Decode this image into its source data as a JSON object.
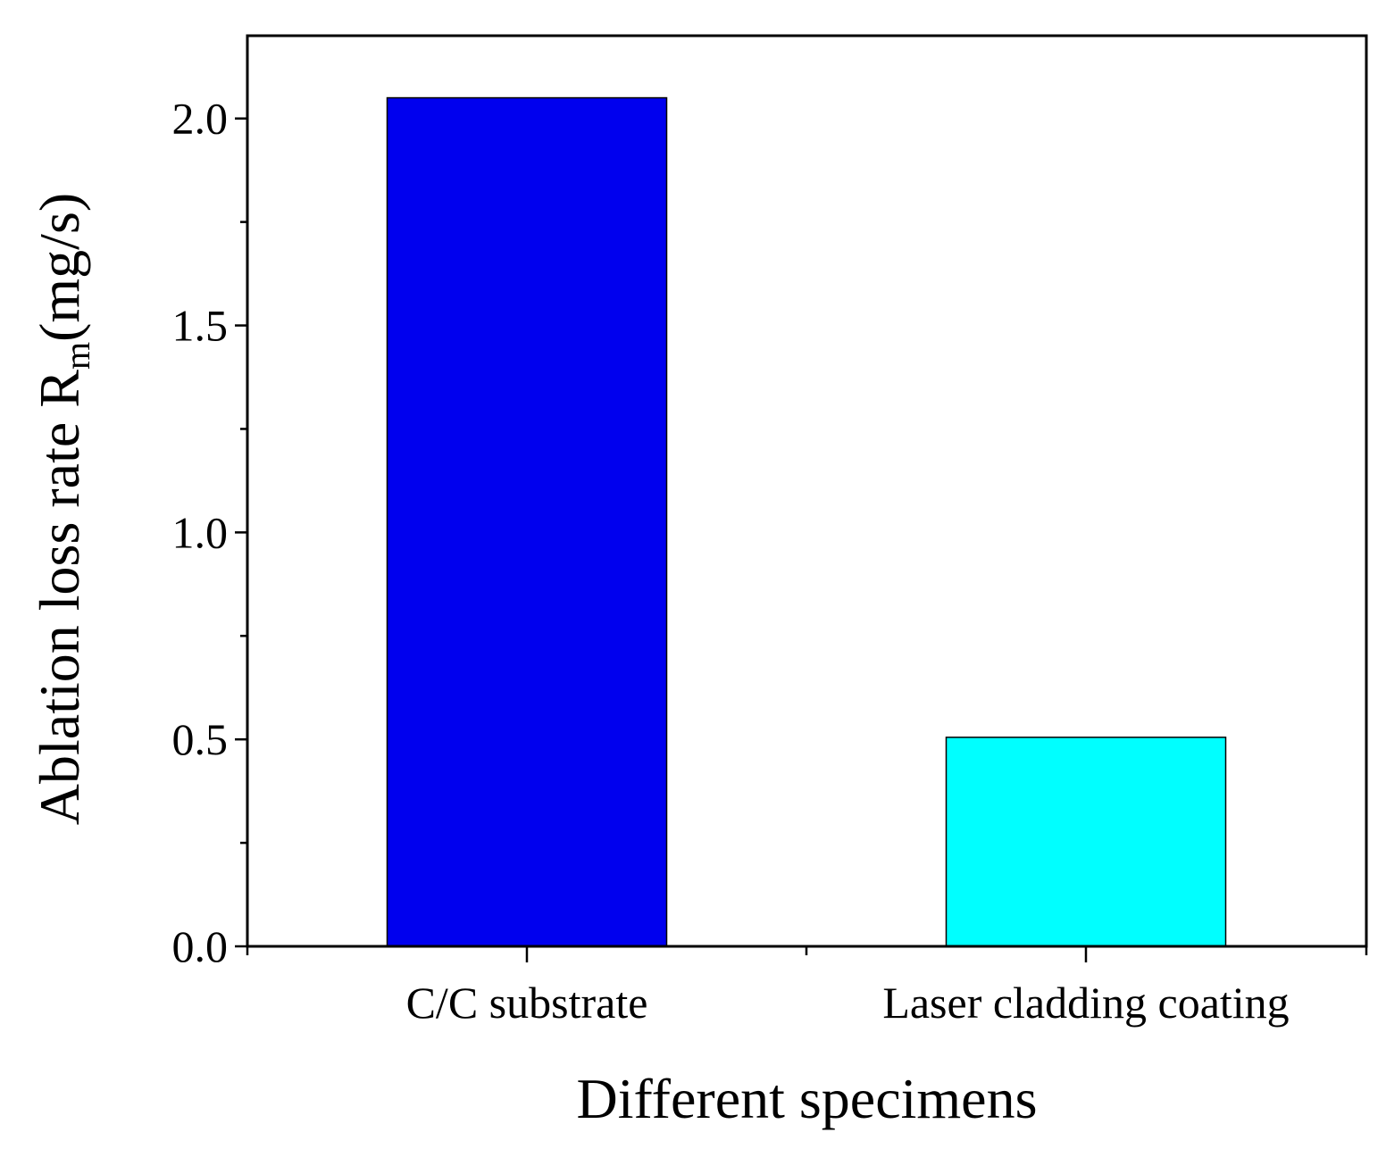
{
  "chart_data": {
    "type": "bar",
    "categories": [
      "C/C substrate",
      "Laser cladding coating"
    ],
    "values": [
      2.05,
      0.505
    ],
    "colors": [
      "#0000ee",
      "#00ffff"
    ],
    "xlabel": "Different specimens",
    "ylabel_main": "Ablation loss rate R",
    "ylabel_sub": "m",
    "ylabel_unit": "(mg/s)",
    "ylim": [
      0,
      2.2
    ],
    "yticks": [
      0.0,
      0.5,
      1.0,
      1.5,
      2.0
    ],
    "ytick_labels": [
      "0.0",
      "0.5",
      "1.0",
      "1.5",
      "2.0"
    ],
    "yminor": [
      0.25,
      0.75,
      1.25,
      1.75
    ],
    "grid": false,
    "legend": "none"
  }
}
